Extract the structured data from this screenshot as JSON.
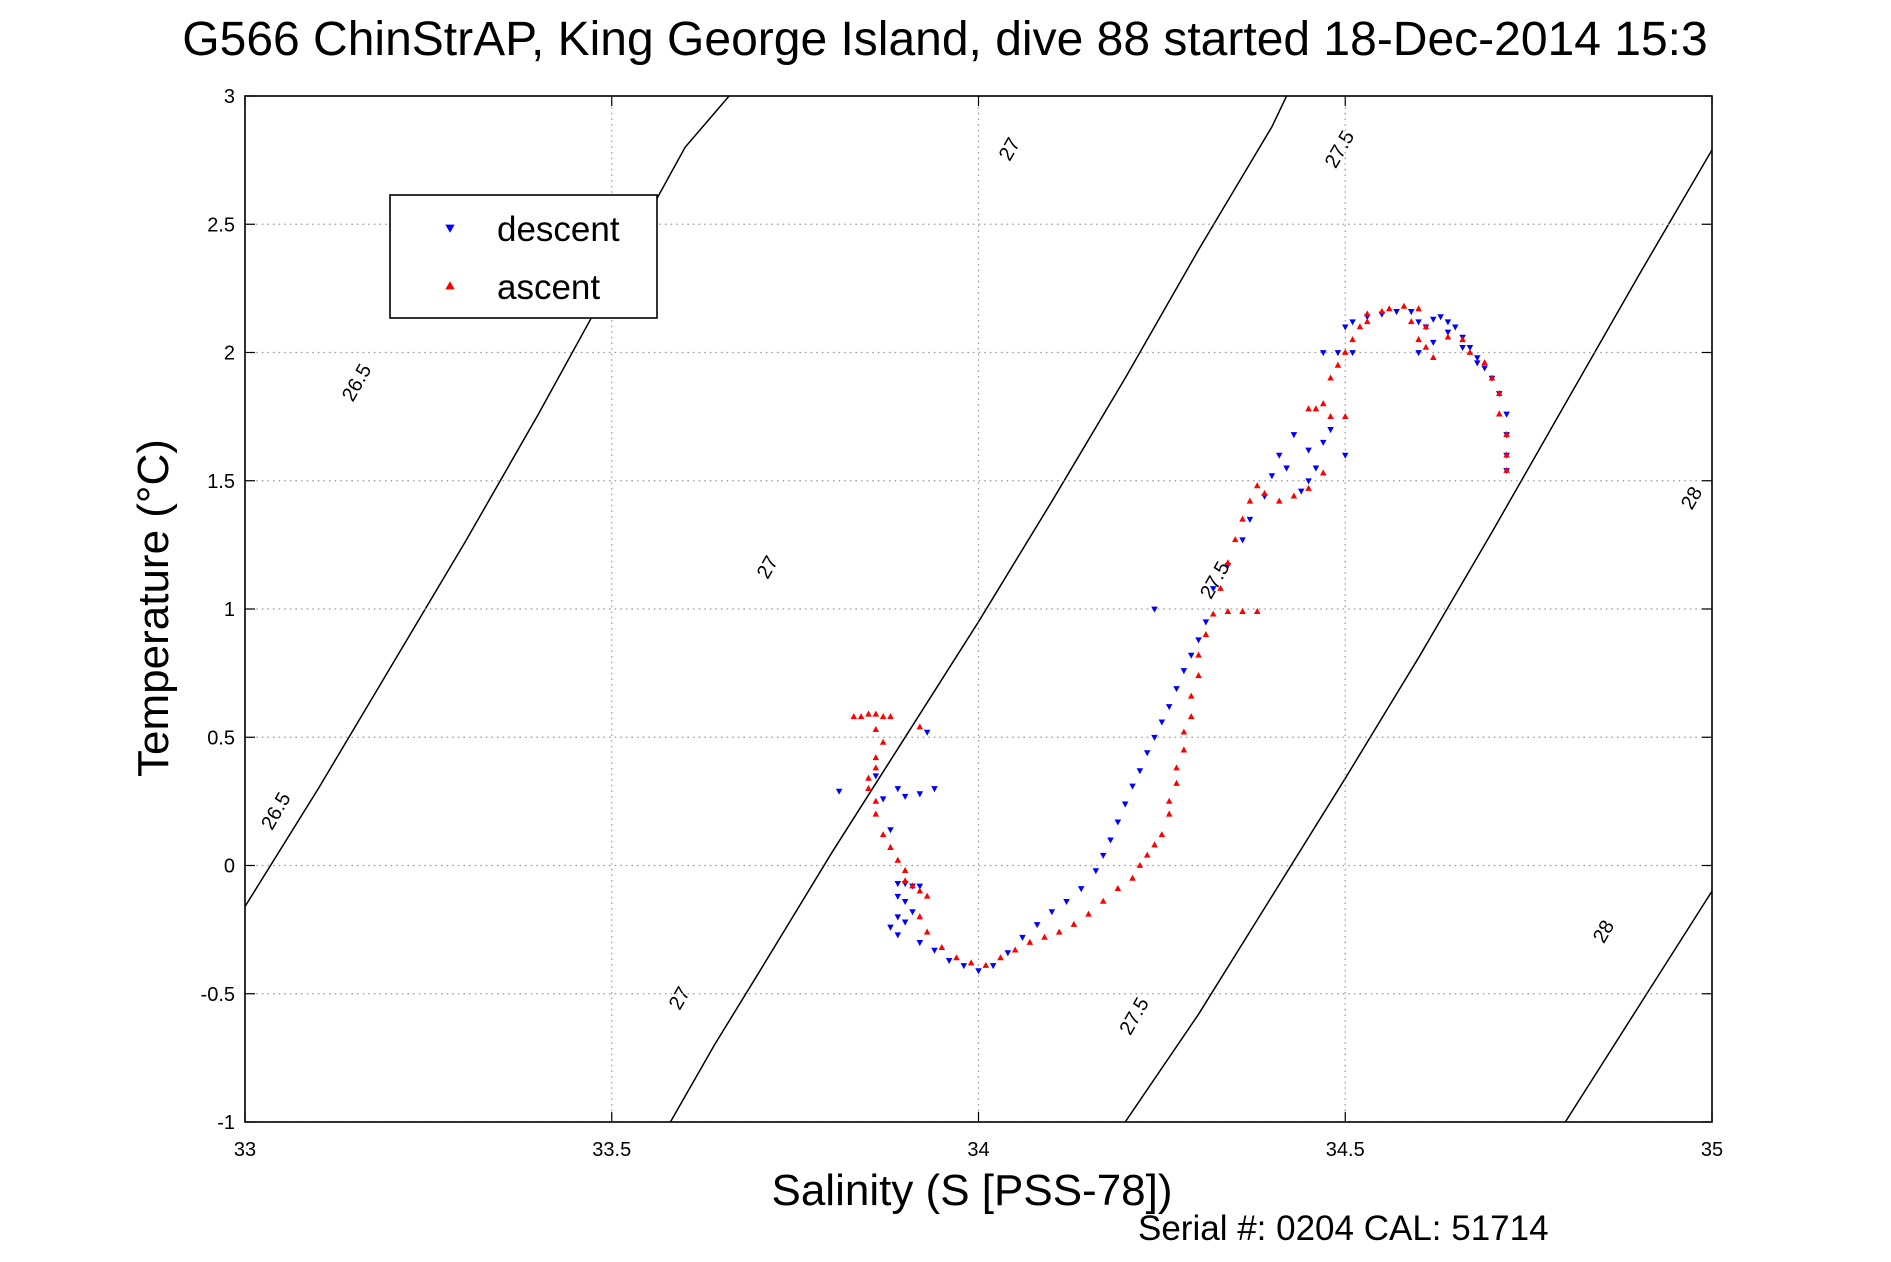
{
  "chart_data": {
    "type": "scatter",
    "title": "G566 ChinStrAP, King George Island, dive 88 started 18-Dec-2014 15:3",
    "xlabel": "Salinity (S [PSS-78])",
    "ylabel": "Temperature (°C)",
    "xlim": [
      33,
      35
    ],
    "ylim": [
      -1,
      3
    ],
    "x_ticks": [
      "33",
      "33.5",
      "34",
      "34.5",
      "35"
    ],
    "y_ticks": [
      "-1",
      "-0.5",
      "0",
      "0.5",
      "1",
      "1.5",
      "2",
      "2.5",
      "3"
    ],
    "grid": true,
    "legend_position": "top-left",
    "footer": "Serial #: 0204  CAL: 51714",
    "contours": [
      {
        "label": "26.5",
        "points": [
          [
            33.0,
            -0.16
          ],
          [
            33.1,
            0.3
          ],
          [
            33.2,
            0.78
          ],
          [
            33.3,
            1.26
          ],
          [
            33.4,
            1.76
          ],
          [
            33.5,
            2.28
          ],
          [
            33.6,
            2.8
          ],
          [
            33.66,
            3.0
          ]
        ],
        "labels_at": [
          [
            33.05,
            0.2
          ],
          [
            33.16,
            1.87
          ]
        ]
      },
      {
        "label": "27",
        "points": [
          [
            33.58,
            -1.0
          ],
          [
            33.64,
            -0.7
          ],
          [
            33.7,
            -0.42
          ],
          [
            33.8,
            0.05
          ],
          [
            33.9,
            0.5
          ],
          [
            34.0,
            0.95
          ],
          [
            34.1,
            1.42
          ],
          [
            34.2,
            1.9
          ],
          [
            34.3,
            2.4
          ],
          [
            34.4,
            2.88
          ],
          [
            34.42,
            3.0
          ]
        ],
        "labels_at": [
          [
            33.6,
            -0.53
          ],
          [
            33.72,
            1.15
          ],
          [
            34.05,
            2.78
          ]
        ]
      },
      {
        "label": "27.5",
        "points": [
          [
            34.2,
            -1.0
          ],
          [
            34.3,
            -0.58
          ],
          [
            34.4,
            -0.12
          ],
          [
            34.5,
            0.34
          ],
          [
            34.6,
            0.81
          ],
          [
            34.7,
            1.3
          ],
          [
            34.8,
            1.8
          ],
          [
            34.9,
            2.3
          ],
          [
            35.0,
            2.79
          ],
          [
            35.04,
            3.0
          ]
        ],
        "labels_at": [
          [
            34.22,
            -0.6
          ],
          [
            34.33,
            1.1
          ],
          [
            34.5,
            2.78
          ]
        ]
      },
      {
        "label": "28",
        "points": [
          [
            34.8,
            -1.0
          ],
          [
            34.9,
            -0.55
          ],
          [
            35.0,
            -0.1
          ],
          [
            35.1,
            0.35
          ],
          [
            35.2,
            0.82
          ],
          [
            35.3,
            1.3
          ],
          [
            35.4,
            1.64
          ]
        ],
        "labels_at": [
          [
            34.86,
            -0.27
          ],
          [
            34.98,
            1.42
          ]
        ]
      }
    ],
    "series": [
      {
        "name": "descent",
        "color": "#0000ff",
        "marker": "triangle-down",
        "points": [
          [
            33.89,
            -0.07
          ],
          [
            33.9,
            -0.07
          ],
          [
            33.91,
            -0.08
          ],
          [
            33.92,
            -0.08
          ],
          [
            33.89,
            -0.12
          ],
          [
            33.9,
            -0.14
          ],
          [
            33.89,
            -0.2
          ],
          [
            33.88,
            -0.24
          ],
          [
            33.89,
            -0.27
          ],
          [
            33.9,
            -0.22
          ],
          [
            33.91,
            -0.18
          ],
          [
            33.89,
            0.3
          ],
          [
            33.9,
            0.27
          ],
          [
            33.92,
            0.28
          ],
          [
            33.94,
            0.3
          ],
          [
            33.81,
            0.29
          ],
          [
            33.93,
            0.52
          ],
          [
            33.87,
            0.26
          ],
          [
            33.86,
            0.35
          ],
          [
            33.88,
            0.14
          ],
          [
            33.92,
            -0.3
          ],
          [
            33.94,
            -0.33
          ],
          [
            33.96,
            -0.37
          ],
          [
            33.98,
            -0.39
          ],
          [
            34.0,
            -0.41
          ],
          [
            34.02,
            -0.39
          ],
          [
            34.04,
            -0.34
          ],
          [
            34.06,
            -0.28
          ],
          [
            34.08,
            -0.23
          ],
          [
            34.1,
            -0.18
          ],
          [
            34.12,
            -0.14
          ],
          [
            34.14,
            -0.09
          ],
          [
            34.16,
            -0.02
          ],
          [
            34.17,
            0.04
          ],
          [
            34.18,
            0.1
          ],
          [
            34.19,
            0.17
          ],
          [
            34.2,
            0.24
          ],
          [
            34.21,
            0.31
          ],
          [
            34.22,
            0.37
          ],
          [
            34.23,
            0.44
          ],
          [
            34.24,
            0.5
          ],
          [
            34.25,
            0.56
          ],
          [
            34.26,
            0.62
          ],
          [
            34.27,
            0.69
          ],
          [
            34.28,
            0.76
          ],
          [
            34.29,
            0.82
          ],
          [
            34.3,
            0.88
          ],
          [
            34.31,
            0.95
          ],
          [
            34.24,
            1.0
          ],
          [
            34.32,
            1.08
          ],
          [
            34.34,
            1.17
          ],
          [
            34.36,
            1.27
          ],
          [
            34.37,
            1.35
          ],
          [
            34.39,
            1.44
          ],
          [
            34.4,
            1.52
          ],
          [
            34.41,
            1.6
          ],
          [
            34.43,
            1.68
          ],
          [
            34.45,
            1.62
          ],
          [
            34.42,
            1.55
          ],
          [
            34.44,
            1.46
          ],
          [
            34.45,
            1.5
          ],
          [
            34.46,
            1.55
          ],
          [
            34.47,
            1.65
          ],
          [
            34.48,
            1.7
          ],
          [
            34.5,
            1.6
          ],
          [
            34.49,
            2.0
          ],
          [
            34.51,
            2.0
          ],
          [
            34.47,
            2.0
          ],
          [
            34.5,
            2.1
          ],
          [
            34.51,
            2.12
          ],
          [
            34.53,
            2.14
          ],
          [
            34.55,
            2.15
          ],
          [
            34.57,
            2.16
          ],
          [
            34.59,
            2.16
          ],
          [
            34.6,
            2.12
          ],
          [
            34.61,
            2.1
          ],
          [
            34.62,
            2.13
          ],
          [
            34.63,
            2.14
          ],
          [
            34.64,
            2.12
          ],
          [
            34.65,
            2.1
          ],
          [
            34.66,
            2.06
          ],
          [
            34.67,
            2.02
          ],
          [
            34.68,
            1.98
          ],
          [
            34.69,
            1.94
          ],
          [
            34.7,
            1.9
          ],
          [
            34.71,
            1.84
          ],
          [
            34.72,
            1.76
          ],
          [
            34.72,
            1.68
          ],
          [
            34.72,
            1.6
          ],
          [
            34.72,
            1.54
          ],
          [
            34.6,
            2.0
          ],
          [
            34.62,
            2.04
          ],
          [
            34.64,
            2.08
          ],
          [
            34.66,
            2.02
          ],
          [
            34.68,
            1.96
          ]
        ]
      },
      {
        "name": "ascent",
        "color": "#ff0000",
        "marker": "triangle-up",
        "points": [
          [
            33.83,
            0.58
          ],
          [
            33.84,
            0.58
          ],
          [
            33.85,
            0.59
          ],
          [
            33.86,
            0.59
          ],
          [
            33.87,
            0.58
          ],
          [
            33.88,
            0.58
          ],
          [
            33.92,
            0.54
          ],
          [
            33.86,
            0.53
          ],
          [
            33.87,
            0.48
          ],
          [
            33.86,
            0.42
          ],
          [
            33.86,
            0.38
          ],
          [
            33.85,
            0.34
          ],
          [
            33.85,
            0.3
          ],
          [
            33.86,
            0.25
          ],
          [
            33.86,
            0.2
          ],
          [
            33.87,
            0.12
          ],
          [
            33.88,
            0.07
          ],
          [
            33.89,
            0.02
          ],
          [
            33.9,
            -0.02
          ],
          [
            33.9,
            -0.06
          ],
          [
            33.91,
            -0.08
          ],
          [
            33.92,
            -0.1
          ],
          [
            33.93,
            -0.12
          ],
          [
            33.92,
            -0.2
          ],
          [
            33.93,
            -0.26
          ],
          [
            33.95,
            -0.32
          ],
          [
            33.97,
            -0.36
          ],
          [
            33.99,
            -0.38
          ],
          [
            34.01,
            -0.39
          ],
          [
            34.03,
            -0.36
          ],
          [
            34.05,
            -0.33
          ],
          [
            34.07,
            -0.3
          ],
          [
            34.09,
            -0.28
          ],
          [
            34.11,
            -0.26
          ],
          [
            34.13,
            -0.23
          ],
          [
            34.15,
            -0.19
          ],
          [
            34.17,
            -0.14
          ],
          [
            34.19,
            -0.09
          ],
          [
            34.21,
            -0.05
          ],
          [
            34.22,
            0.0
          ],
          [
            34.23,
            0.04
          ],
          [
            34.24,
            0.08
          ],
          [
            34.25,
            0.12
          ],
          [
            34.26,
            0.2
          ],
          [
            34.26,
            0.25
          ],
          [
            34.27,
            0.32
          ],
          [
            34.27,
            0.38
          ],
          [
            34.28,
            0.45
          ],
          [
            34.28,
            0.52
          ],
          [
            34.29,
            0.58
          ],
          [
            34.29,
            0.66
          ],
          [
            34.3,
            0.74
          ],
          [
            34.3,
            0.82
          ],
          [
            34.31,
            0.9
          ],
          [
            34.32,
            0.98
          ],
          [
            34.34,
            0.99
          ],
          [
            34.36,
            0.99
          ],
          [
            34.38,
            0.99
          ],
          [
            34.33,
            1.08
          ],
          [
            34.34,
            1.18
          ],
          [
            34.35,
            1.27
          ],
          [
            34.36,
            1.35
          ],
          [
            34.37,
            1.42
          ],
          [
            34.38,
            1.48
          ],
          [
            34.39,
            1.45
          ],
          [
            34.41,
            1.42
          ],
          [
            34.43,
            1.44
          ],
          [
            34.45,
            1.47
          ],
          [
            34.47,
            1.53
          ],
          [
            34.45,
            1.78
          ],
          [
            34.46,
            1.78
          ],
          [
            34.47,
            1.8
          ],
          [
            34.48,
            1.75
          ],
          [
            34.5,
            1.75
          ],
          [
            34.48,
            1.9
          ],
          [
            34.49,
            1.95
          ],
          [
            34.5,
            2.0
          ],
          [
            34.51,
            2.05
          ],
          [
            34.52,
            2.1
          ],
          [
            34.53,
            2.15
          ],
          [
            34.56,
            2.17
          ],
          [
            34.58,
            2.18
          ],
          [
            34.6,
            2.17
          ],
          [
            34.61,
            2.1
          ],
          [
            34.61,
            2.02
          ],
          [
            34.62,
            1.98
          ],
          [
            34.64,
            2.06
          ],
          [
            34.66,
            2.05
          ],
          [
            34.67,
            2.0
          ],
          [
            34.69,
            1.96
          ],
          [
            34.7,
            1.9
          ],
          [
            34.71,
            1.84
          ],
          [
            34.71,
            1.76
          ],
          [
            34.72,
            1.68
          ],
          [
            34.72,
            1.6
          ],
          [
            34.72,
            1.54
          ],
          [
            34.59,
            2.12
          ],
          [
            34.6,
            2.05
          ],
          [
            34.55,
            2.16
          ],
          [
            34.53,
            2.12
          ]
        ]
      }
    ]
  }
}
